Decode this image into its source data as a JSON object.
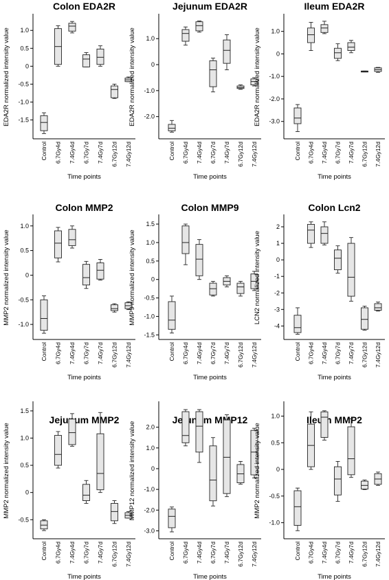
{
  "chart_data": [
    {
      "type": "box",
      "title": "Colon EDA2R",
      "ylabel": "EDA2R normalized intensity value",
      "xlabel": "Time points",
      "categories": [
        "Control",
        "6.7Gy4d",
        "7.4Gy4d",
        "6.7Gy7d",
        "7.4Gy7d",
        "6.7Gy12d",
        "7.4Gy12d"
      ],
      "yticks": [
        1.0,
        0.5,
        0,
        -0.5,
        -1.0,
        -1.5
      ],
      "ytick_labels": [
        "1.0",
        "0.5",
        "0",
        "-0.5",
        "-1.0",
        "-1.5"
      ],
      "ylim": [
        -1.95,
        1.35
      ],
      "boxes": [
        {
          "min": -1.88,
          "q1": -1.8,
          "median": -1.57,
          "q3": -1.38,
          "max": -1.3
        },
        {
          "min": 0.0,
          "q1": 0.05,
          "median": 0.55,
          "q3": 1.05,
          "max": 1.13
        },
        {
          "min": 0.93,
          "q1": 0.98,
          "median": 1.12,
          "q3": 1.2,
          "max": 1.25
        },
        {
          "min": -0.02,
          "q1": -0.02,
          "median": 0.2,
          "q3": 0.32,
          "max": 0.38
        },
        {
          "min": 0.0,
          "q1": 0.05,
          "median": 0.25,
          "q3": 0.48,
          "max": 0.57
        },
        {
          "min": -0.9,
          "q1": -0.88,
          "median": -0.65,
          "q3": -0.55,
          "max": -0.5
        },
        {
          "min": -0.43,
          "q1": -0.43,
          "median": -0.38,
          "q3": -0.33,
          "max": -0.3
        }
      ]
    },
    {
      "type": "box",
      "title": "Jejunum EDA2R",
      "ylabel": "EDA2R normalized intensity value",
      "xlabel": "Time points",
      "categories": [
        "Control",
        "6.7Gy4d",
        "7.4Gy4d",
        "6.7Gy7d",
        "7.4Gy7d",
        "6.7Gy12d",
        "7.4Gy12d"
      ],
      "yticks": [
        1.0,
        0,
        -1.0,
        -2.0
      ],
      "ytick_labels": [
        "1.0",
        "0",
        "-1.0",
        "-2.0"
      ],
      "ylim": [
        -2.75,
        1.8
      ],
      "boxes": [
        {
          "min": -2.6,
          "q1": -2.55,
          "median": -2.45,
          "q3": -2.3,
          "max": -2.15
        },
        {
          "min": 0.75,
          "q1": 0.9,
          "median": 1.2,
          "q3": 1.35,
          "max": 1.45
        },
        {
          "min": 1.25,
          "q1": 1.3,
          "median": 1.5,
          "q3": 1.65,
          "max": 1.68
        },
        {
          "min": -1.05,
          "q1": -0.85,
          "median": -0.2,
          "q3": 0.15,
          "max": 0.25
        },
        {
          "min": -0.2,
          "q1": 0.05,
          "median": 0.55,
          "q3": 0.95,
          "max": 1.15
        },
        {
          "min": -0.95,
          "q1": -0.92,
          "median": -0.88,
          "q3": -0.82,
          "max": -0.78
        },
        {
          "min": -0.82,
          "q1": -0.78,
          "median": -0.65,
          "q3": -0.55,
          "max": -0.5
        }
      ]
    },
    {
      "type": "box",
      "title": "Ileum EDA2R",
      "ylabel": "EDA2R normalized intensity value",
      "xlabel": "Time points",
      "categories": [
        "Control",
        "6.7Gy4d",
        "7.4Gy4d",
        "6.7Gy7d",
        "7.4Gy7d",
        "6.7Gy12d",
        "7.4Gy12d"
      ],
      "yticks": [
        1.0,
        0,
        -1.0,
        -2.0,
        -3.0
      ],
      "ytick_labels": [
        "1.0",
        "0",
        "-1.0",
        "-2.0",
        "-3.0"
      ],
      "ylim": [
        -3.65,
        1.6
      ],
      "boxes": [
        {
          "min": -3.45,
          "q1": -3.1,
          "median": -2.85,
          "q3": -2.4,
          "max": -2.25
        },
        {
          "min": 0.15,
          "q1": 0.5,
          "median": 0.85,
          "q3": 1.15,
          "max": 1.4
        },
        {
          "min": 0.9,
          "q1": 0.95,
          "median": 1.15,
          "q3": 1.3,
          "max": 1.45
        },
        {
          "min": -0.3,
          "q1": -0.2,
          "median": 0.05,
          "q3": 0.25,
          "max": 0.45
        },
        {
          "min": 0.05,
          "q1": 0.15,
          "median": 0.3,
          "q3": 0.5,
          "max": 0.6
        },
        {
          "min": -0.8,
          "q1": -0.8,
          "median": -0.78,
          "q3": -0.76,
          "max": -0.76
        },
        {
          "min": -0.82,
          "q1": -0.78,
          "median": -0.7,
          "q3": -0.62,
          "max": -0.6
        }
      ]
    },
    {
      "type": "box",
      "title": "Colon MMP2",
      "ylabel": "MMP2 normalized intensity value",
      "xlabel": "Time points",
      "categories": [
        "Control",
        "6.7Gy4d",
        "7.4Gy4d",
        "6.7Gy7d",
        "7.4Gy7d",
        "6.7Gy12d",
        "7.4Gy12d"
      ],
      "yticks": [
        1.0,
        0.5,
        0,
        -0.5,
        -1.0
      ],
      "ytick_labels": [
        "1.0",
        "0.5",
        "0",
        "-0.5",
        "-1.0"
      ],
      "ylim": [
        -1.25,
        1.15
      ],
      "boxes": [
        {
          "min": -1.18,
          "q1": -1.12,
          "median": -0.88,
          "q3": -0.5,
          "max": -0.42
        },
        {
          "min": 0.27,
          "q1": 0.35,
          "median": 0.65,
          "q3": 0.9,
          "max": 0.97
        },
        {
          "min": 0.55,
          "q1": 0.6,
          "median": 0.72,
          "q3": 0.93,
          "max": 1.0
        },
        {
          "min": -0.27,
          "q1": -0.2,
          "median": -0.05,
          "q3": 0.22,
          "max": 0.28
        },
        {
          "min": -0.1,
          "q1": -0.08,
          "median": 0.1,
          "q3": 0.25,
          "max": 0.32
        },
        {
          "min": -0.75,
          "q1": -0.72,
          "median": -0.68,
          "q3": -0.6,
          "max": -0.58
        },
        {
          "min": -0.7,
          "q1": -0.68,
          "median": -0.62,
          "q3": -0.56,
          "max": -0.54
        }
      ]
    },
    {
      "type": "box",
      "title": "Colon MMP9",
      "ylabel": "MMP9 normalized intensity value",
      "xlabel": "Time points",
      "categories": [
        "Control",
        "6.7Gy4d",
        "7.4Gy4d",
        "6.7Gy7d",
        "7.4Gy7d",
        "6.7Gy12d",
        "7.4Gy12d"
      ],
      "yticks": [
        1.5,
        1.0,
        0.5,
        0,
        -0.5,
        -1.0,
        -1.5
      ],
      "ytick_labels": [
        "1.5",
        "1.0",
        "0.5",
        "0",
        "-0.5",
        "-1.0",
        "-1.5"
      ],
      "ylim": [
        -1.55,
        1.65
      ],
      "boxes": [
        {
          "min": -1.45,
          "q1": -1.35,
          "median": -1.1,
          "q3": -0.6,
          "max": -0.45
        },
        {
          "min": 0.4,
          "q1": 0.7,
          "median": 1.0,
          "q3": 1.45,
          "max": 1.5
        },
        {
          "min": 0.0,
          "q1": 0.1,
          "median": 0.55,
          "q3": 0.95,
          "max": 1.08
        },
        {
          "min": -0.45,
          "q1": -0.42,
          "median": -0.25,
          "q3": -0.1,
          "max": -0.05
        },
        {
          "min": -0.2,
          "q1": -0.15,
          "median": -0.05,
          "q3": 0.05,
          "max": 0.1
        },
        {
          "min": -0.45,
          "q1": -0.38,
          "median": -0.2,
          "q3": -0.1,
          "max": -0.05
        },
        {
          "min": -0.3,
          "q1": -0.25,
          "median": -0.05,
          "q3": 0.15,
          "max": 0.22
        }
      ]
    },
    {
      "type": "box",
      "title": "Colon Lcn2",
      "ylabel": "LCN2 normalized intensity value",
      "xlabel": "Time points",
      "categories": [
        "Control",
        "6.7Gy4d",
        "7.4Gy4d",
        "6.7Gy7d",
        "7.4Gy7d",
        "6.7Gy12d",
        "7.4Gy12d"
      ],
      "yticks": [
        2,
        1,
        0,
        -1,
        -2,
        -3,
        -4
      ],
      "ytick_labels": [
        "2",
        "1",
        "0",
        "-1",
        "-2",
        "-3",
        "-4"
      ],
      "ylim": [
        -4.65,
        2.5
      ],
      "boxes": [
        {
          "min": -4.5,
          "q1": -4.4,
          "median": -4.1,
          "q3": -3.35,
          "max": -2.9
        },
        {
          "min": 0.75,
          "q1": 1.0,
          "median": 1.8,
          "q3": 2.15,
          "max": 2.3
        },
        {
          "min": 0.9,
          "q1": 1.0,
          "median": 1.6,
          "q3": 2.0,
          "max": 2.3
        },
        {
          "min": -0.8,
          "q1": -0.6,
          "median": 0.1,
          "q3": 0.6,
          "max": 0.85
        },
        {
          "min": -2.5,
          "q1": -2.2,
          "median": -1.05,
          "q3": 1.0,
          "max": 1.35
        },
        {
          "min": -4.25,
          "q1": -4.2,
          "median": -3.6,
          "q3": -2.9,
          "max": -2.8
        },
        {
          "min": -3.1,
          "q1": -3.05,
          "median": -2.9,
          "q3": -2.65,
          "max": -2.55
        }
      ]
    },
    {
      "type": "box",
      "title": "Jejunum MMP2",
      "ylabel": "MMP2 normalized intensity value",
      "xlabel": "Time points",
      "categories": [
        "Control",
        "6.7Gy4d",
        "7.4Gy4d",
        "6.7Gy7d",
        "7.4Gy7d",
        "6.7Gy12d",
        "7.4Gy12d"
      ],
      "yticks": [
        1.5,
        1.0,
        0.5,
        0,
        -0.5
      ],
      "ytick_labels": [
        "1.5",
        "1.0",
        "0.5",
        "0",
        "-0.5"
      ],
      "ylim": [
        -0.8,
        1.6
      ],
      "boxes": [
        {
          "min": -0.7,
          "q1": -0.67,
          "median": -0.6,
          "q3": -0.52,
          "max": -0.5
        },
        {
          "min": 0.45,
          "q1": 0.5,
          "median": 0.7,
          "q3": 1.05,
          "max": 1.12
        },
        {
          "min": 0.85,
          "q1": 0.88,
          "median": 1.1,
          "q3": 1.35,
          "max": 1.45
        },
        {
          "min": -0.2,
          "q1": -0.15,
          "median": -0.05,
          "q3": 0.15,
          "max": 0.22
        },
        {
          "min": 0.0,
          "q1": 0.05,
          "median": 0.35,
          "q3": 1.08,
          "max": 1.47
        },
        {
          "min": -0.57,
          "q1": -0.52,
          "median": -0.35,
          "q3": -0.2,
          "max": -0.15
        },
        {
          "min": -0.47,
          "q1": -0.47,
          "median": -0.42,
          "q3": -0.37,
          "max": -0.35
        }
      ]
    },
    {
      "type": "box",
      "title": "Jejunum MMP12",
      "ylabel": "MMP12 normalized intensity value",
      "xlabel": "Time points",
      "categories": [
        "Control",
        "6.7Gy4d",
        "7.4Gy4d",
        "6.7Gy7d",
        "7.4Gy7d",
        "6.7Gy12d",
        "7.4Gy12d"
      ],
      "yticks": [
        2.0,
        1.0,
        0,
        -1.0,
        -2.0,
        -3.0
      ],
      "ytick_labels": [
        "2.0",
        "1.0",
        "0",
        "-1.0",
        "-2.0",
        "-3.0"
      ],
      "ylim": [
        -3.25,
        3.05
      ],
      "boxes": [
        {
          "min": -3.05,
          "q1": -2.85,
          "median": -2.3,
          "q3": -1.95,
          "max": -1.85
        },
        {
          "min": 1.1,
          "q1": 1.25,
          "median": 1.6,
          "q3": 2.75,
          "max": 2.85
        },
        {
          "min": 0.3,
          "q1": 0.8,
          "median": 2.05,
          "q3": 2.75,
          "max": 2.85
        },
        {
          "min": -1.8,
          "q1": -1.55,
          "median": -0.55,
          "q3": 1.1,
          "max": 1.5
        },
        {
          "min": -1.35,
          "q1": -1.2,
          "median": 0.55,
          "q3": 2.35,
          "max": 2.6
        },
        {
          "min": -0.75,
          "q1": -0.68,
          "median": -0.25,
          "q3": 0.2,
          "max": 0.35
        },
        {
          "min": -0.45,
          "q1": -0.3,
          "median": 0.8,
          "q3": 1.85,
          "max": 1.95
        }
      ]
    },
    {
      "type": "box",
      "title": "Ileum MMP2",
      "ylabel": "MMP2 normalized intensity value",
      "xlabel": "Time points",
      "categories": [
        "Control",
        "6.7Gy4d",
        "7.4Gy4d",
        "6.7Gy7d",
        "7.4Gy7d",
        "6.7Gy12d",
        "7.4Gy12d"
      ],
      "yticks": [
        1.0,
        0.5,
        0,
        -0.5,
        -1.0
      ],
      "ytick_labels": [
        "1.0",
        "0.5",
        "0",
        "-0.5",
        "-1.0"
      ],
      "ylim": [
        -1.25,
        1.2
      ],
      "boxes": [
        {
          "min": -1.15,
          "q1": -1.05,
          "median": -0.7,
          "q3": -0.4,
          "max": -0.35
        },
        {
          "min": 0.0,
          "q1": 0.05,
          "median": 0.45,
          "q3": 0.85,
          "max": 1.08
        },
        {
          "min": 0.55,
          "q1": 0.6,
          "median": 0.98,
          "q3": 1.08,
          "max": 1.1
        },
        {
          "min": -0.6,
          "q1": -0.48,
          "median": -0.18,
          "q3": 0.05,
          "max": 0.15
        },
        {
          "min": -0.15,
          "q1": -0.1,
          "median": 0.2,
          "q3": 0.8,
          "max": 0.95
        },
        {
          "min": -0.38,
          "q1": -0.37,
          "median": -0.3,
          "q3": -0.22,
          "max": -0.2
        },
        {
          "min": -0.3,
          "q1": -0.28,
          "median": -0.18,
          "q3": -0.08,
          "max": -0.05
        }
      ]
    }
  ]
}
